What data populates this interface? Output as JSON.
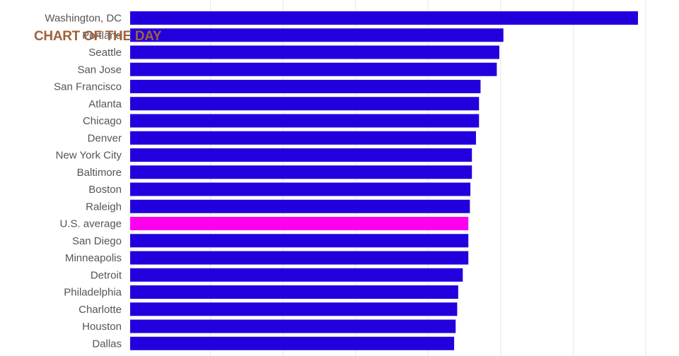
{
  "badge": {
    "text": "CHART OF THE DAY",
    "color": "#a0623a"
  },
  "colors": {
    "bar": "#2200dd",
    "highlight": "#ff00ee",
    "grid": "#e6e6e6",
    "label": "#555555"
  },
  "chart_data": {
    "type": "bar",
    "orientation": "horizontal",
    "title": "",
    "xlabel": "",
    "ylabel": "",
    "grid": true,
    "xlim": [
      0,
      100
    ],
    "highlight_category": "U.S. average",
    "categories": [
      "Washington, DC",
      "Portland",
      "Seattle",
      "San Jose",
      "San Francisco",
      "Atlanta",
      "Chicago",
      "Denver",
      "New York City",
      "Baltimore",
      "Boston",
      "Raleigh",
      "U.S. average",
      "San Diego",
      "Minneapolis",
      "Detroit",
      "Philadelphia",
      "Charlotte",
      "Houston",
      "Dallas"
    ],
    "values": [
      100,
      73.5,
      72.7,
      72.2,
      69.0,
      68.7,
      68.7,
      68.1,
      67.3,
      67.3,
      67.0,
      66.9,
      66.6,
      66.6,
      66.6,
      65.5,
      64.6,
      64.4,
      64.1,
      63.8
    ]
  }
}
